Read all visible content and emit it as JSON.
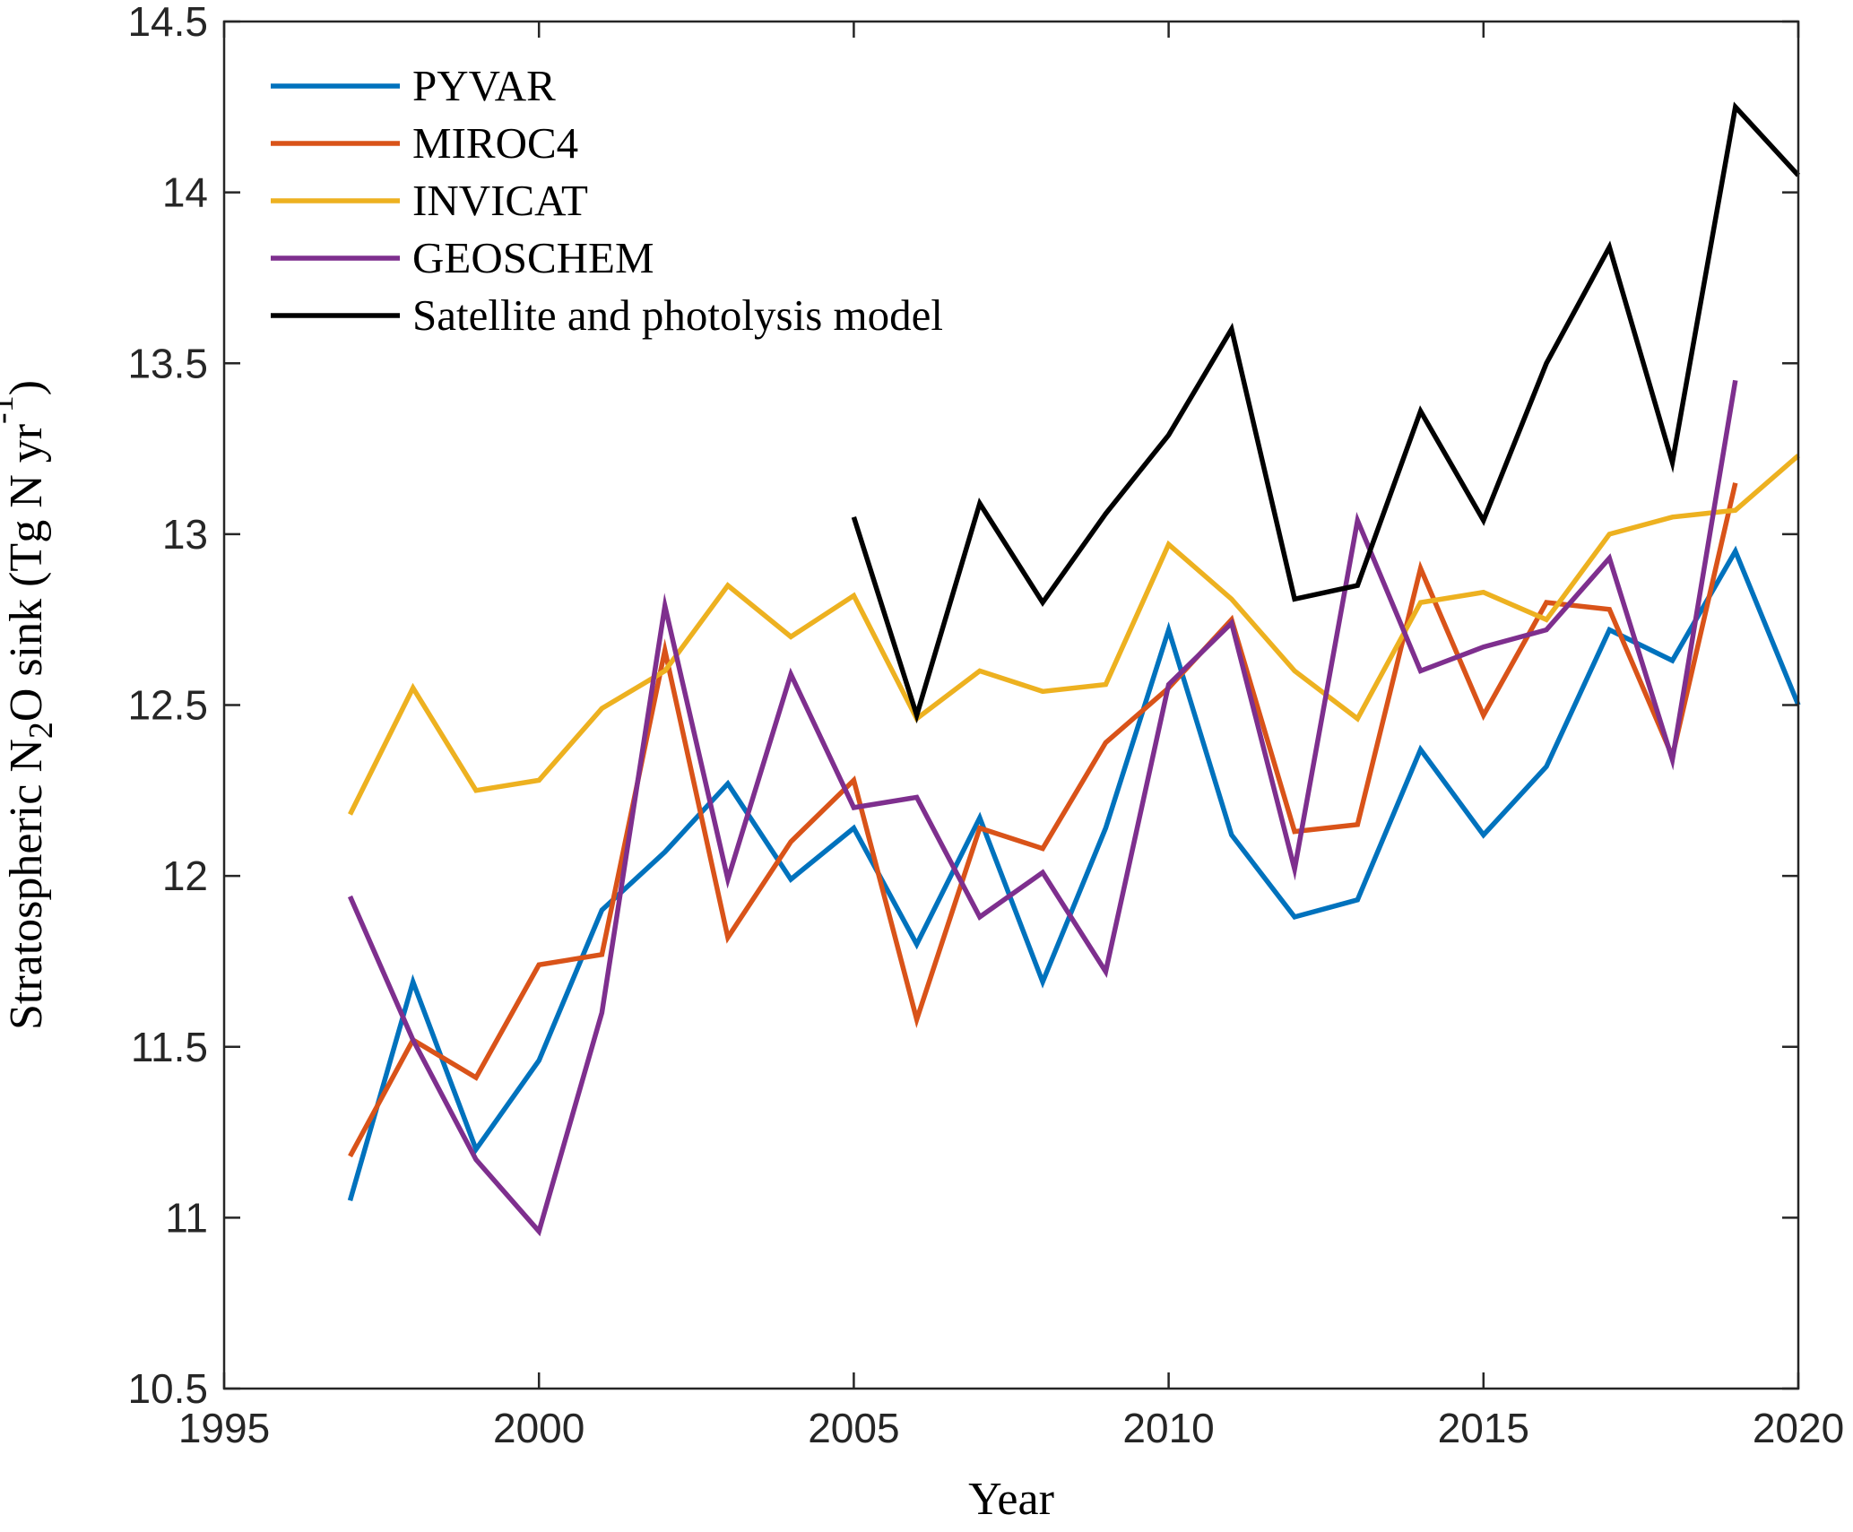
{
  "chart_data": {
    "type": "line",
    "xlabel": "Year",
    "ylabel": {
      "parts": [
        {
          "text": "Stratospheric N",
          "sub": false
        },
        {
          "text": "2",
          "sub": true
        },
        {
          "text": "O sink (Tg N yr",
          "sub": false
        },
        {
          "text": "-1",
          "sup": true
        },
        {
          "text": ")",
          "sub": false
        }
      ]
    },
    "xlim": [
      1995,
      2020
    ],
    "ylim": [
      10.5,
      14.5
    ],
    "xticks": [
      "1995",
      "2000",
      "2005",
      "2010",
      "2015",
      "2020"
    ],
    "yticks": [
      "10.5",
      "11",
      "11.5",
      "12",
      "12.5",
      "13",
      "13.5",
      "14",
      "14.5"
    ],
    "grid": false,
    "legend": "top-left",
    "series": [
      {
        "name": "PYVAR",
        "color": "#0072BD",
        "x": [
          1997,
          1998,
          1999,
          2000,
          2001,
          2002,
          2003,
          2004,
          2005,
          2006,
          2007,
          2008,
          2009,
          2010,
          2011,
          2012,
          2013,
          2014,
          2015,
          2016,
          2017,
          2018,
          2019,
          2020
        ],
        "y": [
          11.05,
          11.69,
          11.2,
          11.46,
          11.9,
          12.07,
          12.27,
          11.99,
          12.14,
          11.8,
          12.17,
          11.69,
          12.14,
          12.72,
          12.12,
          11.88,
          11.93,
          12.37,
          12.12,
          12.32,
          12.72,
          12.63,
          12.95,
          12.5
        ]
      },
      {
        "name": "MIROC4",
        "color": "#D95319",
        "x": [
          1997,
          1998,
          1999,
          2000,
          2001,
          2002,
          2003,
          2004,
          2005,
          2006,
          2007,
          2008,
          2009,
          2010,
          2011,
          2012,
          2013,
          2014,
          2015,
          2016,
          2017,
          2018,
          2019
        ],
        "y": [
          11.18,
          11.52,
          11.41,
          11.74,
          11.77,
          12.66,
          11.82,
          12.1,
          12.28,
          11.58,
          12.14,
          12.08,
          12.39,
          12.55,
          12.75,
          12.13,
          12.15,
          12.9,
          12.47,
          12.8,
          12.78,
          12.35,
          13.15
        ]
      },
      {
        "name": "INVICAT",
        "color": "#EDB120",
        "x": [
          1997,
          1998,
          1999,
          2000,
          2001,
          2002,
          2003,
          2004,
          2005,
          2006,
          2007,
          2008,
          2009,
          2010,
          2011,
          2012,
          2013,
          2014,
          2015,
          2016,
          2017,
          2018,
          2019,
          2020
        ],
        "y": [
          12.18,
          12.55,
          12.25,
          12.28,
          12.49,
          12.6,
          12.85,
          12.7,
          12.82,
          12.46,
          12.6,
          12.54,
          12.56,
          12.97,
          12.81,
          12.6,
          12.46,
          12.8,
          12.83,
          12.75,
          13.0,
          13.05,
          13.07,
          13.23
        ]
      },
      {
        "name": "GEOSCHEM",
        "color": "#7E2F8E",
        "x": [
          1997,
          1998,
          1999,
          2000,
          2001,
          2002,
          2003,
          2004,
          2005,
          2006,
          2007,
          2008,
          2009,
          2010,
          2011,
          2012,
          2013,
          2014,
          2015,
          2016,
          2017,
          2018,
          2019
        ],
        "y": [
          11.94,
          11.52,
          11.17,
          10.96,
          11.6,
          12.79,
          11.99,
          12.59,
          12.2,
          12.23,
          11.88,
          12.01,
          11.72,
          12.56,
          12.74,
          12.02,
          13.04,
          12.6,
          12.67,
          12.72,
          12.93,
          12.34,
          13.45
        ]
      },
      {
        "name": "Satellite and photolysis model",
        "color": "#000000",
        "x": [
          2005,
          2006,
          2007,
          2008,
          2009,
          2010,
          2011,
          2012,
          2013,
          2014,
          2015,
          2016,
          2017,
          2018,
          2019,
          2020
        ],
        "y": [
          13.05,
          12.47,
          13.09,
          12.8,
          13.06,
          13.29,
          13.6,
          12.81,
          12.85,
          13.36,
          13.04,
          13.5,
          13.84,
          13.21,
          14.25,
          14.05
        ]
      }
    ]
  }
}
